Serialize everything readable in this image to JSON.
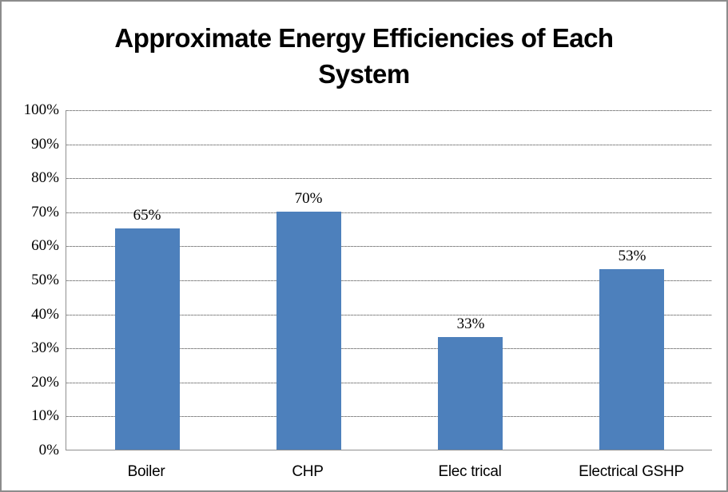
{
  "chart_data": {
    "type": "bar",
    "title": "Approximate Energy Efficiencies of Each System",
    "categories": [
      "Boiler",
      "CHP",
      "Elec trical",
      "Electrical GSHP"
    ],
    "values": [
      65,
      70,
      33,
      53
    ],
    "data_labels": [
      "65%",
      "70%",
      "33%",
      "53%"
    ],
    "xlabel": "",
    "ylabel": "",
    "ylim": [
      0,
      100
    ],
    "ytick_interval": 10,
    "ytick_labels": [
      "0%",
      "10%",
      "20%",
      "30%",
      "40%",
      "50%",
      "60%",
      "70%",
      "80%",
      "90%",
      "100%"
    ],
    "grid": "horizontal",
    "legend": "none",
    "colors": {
      "bar_fill": "#4D80BC",
      "gridline": "#8e8e8e",
      "axis_line": "#8f8f8f",
      "text": "#000000",
      "frame_border": "#8c8c8c",
      "background": "#ffffff"
    }
  }
}
